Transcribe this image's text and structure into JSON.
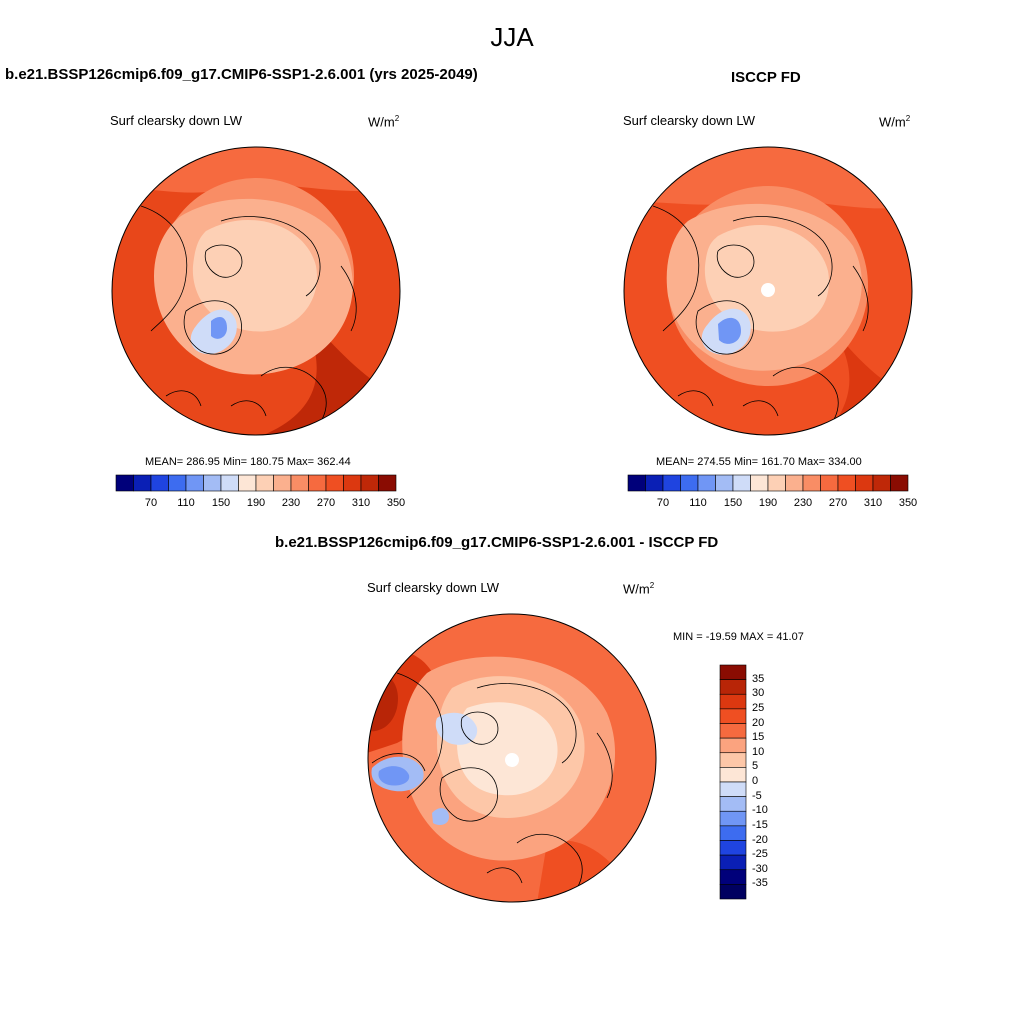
{
  "title": "JJA",
  "panels": {
    "model": {
      "case": "b.e21.BSSP126cmip6.f09_g17.CMIP6-SSP1-2.6.001 (yrs 2025-2049)",
      "variable": "Surf clearsky down LW",
      "units_base": "W/m",
      "units_exp": "2",
      "stats": "MEAN= 286.95  Min= 180.75  Max= 362.44"
    },
    "obs": {
      "case": "ISCCP FD",
      "variable": "Surf clearsky down LW",
      "units_base": "W/m",
      "units_exp": "2",
      "stats": "MEAN= 274.55  Min= 161.70  Max= 334.00"
    },
    "diff": {
      "case": "b.e21.BSSP126cmip6.f09_g17.CMIP6-SSP1-2.6.001 - ISCCP FD",
      "variable": "Surf clearsky down LW",
      "units_base": "W/m",
      "units_exp": "2",
      "stats": "MIN = -19.59 MAX =  41.07"
    }
  },
  "colorbar_abs": {
    "labels": [
      "70",
      "110",
      "150",
      "190",
      "230",
      "270",
      "310",
      "350"
    ],
    "colors": [
      "#00007a",
      "#0a1fb5",
      "#1f44e0",
      "#3d6cf0",
      "#7096f5",
      "#a3bcf5",
      "#cfdcf8",
      "#fde6d6",
      "#fdd0b5",
      "#fbb08e",
      "#f98d65",
      "#f66a3f",
      "#ef4f22",
      "#dc3810",
      "#bf2808",
      "#8a0c02"
    ]
  },
  "colorbar_diff": {
    "labels": [
      "35",
      "30",
      "25",
      "20",
      "15",
      "10",
      "5",
      "0",
      "-5",
      "-10",
      "-15",
      "-20",
      "-25",
      "-30",
      "-35"
    ],
    "colors": [
      "#8a0c02",
      "#b82507",
      "#dc3810",
      "#ef4f22",
      "#f66a3f",
      "#fba37f",
      "#fdc7a8",
      "#fde6d6",
      "#cfdcf8",
      "#a3bcf5",
      "#7096f5",
      "#3d6cf0",
      "#1f44e0",
      "#0a1fb5",
      "#00007a",
      "#000060"
    ]
  }
}
